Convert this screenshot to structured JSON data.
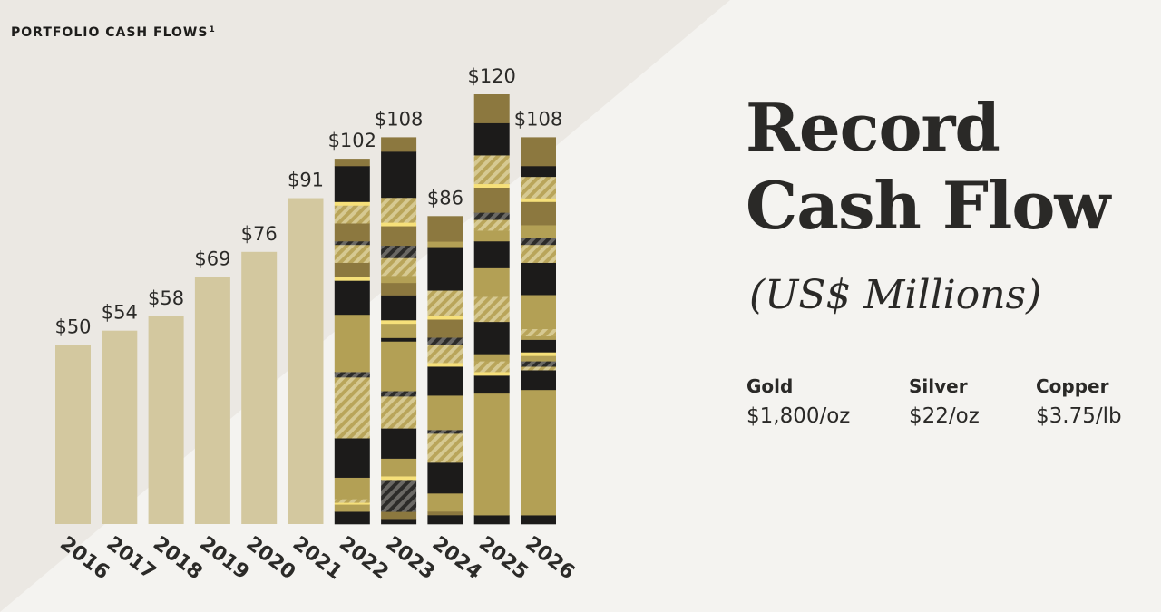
{
  "page": {
    "chart_title": "PORTFOLIO CASH FLOWS",
    "footnote_marker": "1",
    "headline_line1": "Record",
    "headline_line2": "Cash Flow",
    "units_note": "(US$ Millions)"
  },
  "prices": [
    {
      "metal": "Gold",
      "value": "$1,800/oz"
    },
    {
      "metal": "Silver",
      "value": "$22/oz"
    },
    {
      "metal": "Copper",
      "value": "$3.75/lb"
    }
  ],
  "colors": {
    "historical_bar": "#d3c89f",
    "black_segment": "#1c1b1a",
    "olive_segment": "#b3a055",
    "bronze_segment": "#8c783f",
    "yellow_stripe": "#f6e07a",
    "hatched_olive": "#c8b570",
    "hatched_dark": "#4a4946",
    "background": "#f4f3f0",
    "background_triangle": "#ebe8e3"
  },
  "chart_data": {
    "type": "bar",
    "title": "PORTFOLIO CASH FLOWS",
    "categories": [
      "2016",
      "2017",
      "2018",
      "2019",
      "2020",
      "2021",
      "2022",
      "2023",
      "2024",
      "2025",
      "2026"
    ],
    "values": [
      50,
      54,
      58,
      69,
      76,
      91,
      102,
      108,
      86,
      120,
      108
    ],
    "value_labels": [
      "$50",
      "$54",
      "$58",
      "$69",
      "$76",
      "$91",
      "$102",
      "$108",
      "$86",
      "$120",
      "$108"
    ],
    "ylim": [
      0,
      125
    ],
    "grid": false,
    "segment_composition": {
      "2022": [
        {
          "type": "black",
          "value": 3.5
        },
        {
          "type": "olive",
          "value": 2
        },
        {
          "type": "yellow",
          "value": 0.5
        },
        {
          "type": "hatch_o",
          "value": 1
        },
        {
          "type": "olive",
          "value": 6
        },
        {
          "type": "black",
          "value": 11
        },
        {
          "type": "hatch_o",
          "value": 17
        },
        {
          "type": "hatch_d",
          "value": 1.5
        },
        {
          "type": "olive",
          "value": 16
        },
        {
          "type": "black",
          "value": 9.5
        },
        {
          "type": "yellow",
          "value": 1
        },
        {
          "type": "bronze",
          "value": 4
        },
        {
          "type": "hatch_o",
          "value": 5
        },
        {
          "type": "hatch_d",
          "value": 1
        },
        {
          "type": "bronze",
          "value": 5
        },
        {
          "type": "hatch_o",
          "value": 5
        },
        {
          "type": "yellow",
          "value": 1
        },
        {
          "type": "black",
          "value": 10
        },
        {
          "type": "bronze",
          "value": 2
        }
      ],
      "2023": [
        {
          "type": "black",
          "value": 1.5
        },
        {
          "type": "bronze",
          "value": 2
        },
        {
          "type": "hatch_d",
          "value": 9
        },
        {
          "type": "yellow",
          "value": 1
        },
        {
          "type": "olive",
          "value": 5
        },
        {
          "type": "black",
          "value": 8.5
        },
        {
          "type": "hatch_o",
          "value": 9
        },
        {
          "type": "hatch_d",
          "value": 1.5
        },
        {
          "type": "olive",
          "value": 14
        },
        {
          "type": "black",
          "value": 1
        },
        {
          "type": "olive",
          "value": 4
        },
        {
          "type": "yellow",
          "value": 1
        },
        {
          "type": "black",
          "value": 7
        },
        {
          "type": "bronze",
          "value": 3.5
        },
        {
          "type": "olive",
          "value": 2
        },
        {
          "type": "hatch_o",
          "value": 5
        },
        {
          "type": "hatch_d",
          "value": 3.5
        },
        {
          "type": "bronze",
          "value": 5.5
        },
        {
          "type": "yellow",
          "value": 1
        },
        {
          "type": "hatch_o",
          "value": 7
        },
        {
          "type": "black",
          "value": 13
        },
        {
          "type": "bronze",
          "value": 4
        }
      ],
      "2024": [
        {
          "type": "black",
          "value": 2.5
        },
        {
          "type": "bronze",
          "value": 1
        },
        {
          "type": "olive",
          "value": 5
        },
        {
          "type": "black",
          "value": 8.5
        },
        {
          "type": "hatch_o",
          "value": 8
        },
        {
          "type": "hatch_d",
          "value": 1
        },
        {
          "type": "olive",
          "value": 9.5
        },
        {
          "type": "black",
          "value": 8
        },
        {
          "type": "yellow",
          "value": 1
        },
        {
          "type": "hatch_o",
          "value": 5
        },
        {
          "type": "hatch_d",
          "value": 2
        },
        {
          "type": "bronze",
          "value": 5
        },
        {
          "type": "yellow",
          "value": 1
        },
        {
          "type": "hatch_o",
          "value": 7
        },
        {
          "type": "black",
          "value": 12
        },
        {
          "type": "olive",
          "value": 1.5
        },
        {
          "type": "bronze",
          "value": 7
        }
      ],
      "2025": [
        {
          "type": "black",
          "value": 2.5
        },
        {
          "type": "olive",
          "value": 34
        },
        {
          "type": "black",
          "value": 5
        },
        {
          "type": "yellow",
          "value": 1
        },
        {
          "type": "hatch_o",
          "value": 3
        },
        {
          "type": "olive",
          "value": 2
        },
        {
          "type": "black",
          "value": 9
        },
        {
          "type": "hatch_o",
          "value": 7
        },
        {
          "type": "olive",
          "value": 8
        },
        {
          "type": "black",
          "value": 7.5
        },
        {
          "type": "olive",
          "value": 3
        },
        {
          "type": "hatch_o",
          "value": 3
        },
        {
          "type": "hatch_d",
          "value": 2
        },
        {
          "type": "bronze",
          "value": 7
        },
        {
          "type": "yellow",
          "value": 1
        },
        {
          "type": "hatch_o",
          "value": 8
        },
        {
          "type": "black",
          "value": 9
        },
        {
          "type": "bronze",
          "value": 8
        }
      ],
      "2026": [
        {
          "type": "black",
          "value": 2.5
        },
        {
          "type": "olive",
          "value": 35
        },
        {
          "type": "black",
          "value": 5.5
        },
        {
          "type": "hatch_o",
          "value": 1
        },
        {
          "type": "hatch_d",
          "value": 1.5
        },
        {
          "type": "olive",
          "value": 1.5
        },
        {
          "type": "yellow",
          "value": 1
        },
        {
          "type": "black",
          "value": 3.5
        },
        {
          "type": "olive",
          "value": 1
        },
        {
          "type": "hatch_o",
          "value": 2
        },
        {
          "type": "olive",
          "value": 9.5
        },
        {
          "type": "black",
          "value": 9
        },
        {
          "type": "hatch_o",
          "value": 5
        },
        {
          "type": "hatch_d",
          "value": 2
        },
        {
          "type": "olive",
          "value": 3.5
        },
        {
          "type": "bronze",
          "value": 6.5
        },
        {
          "type": "yellow",
          "value": 1
        },
        {
          "type": "hatch_o",
          "value": 6
        },
        {
          "type": "black",
          "value": 3
        },
        {
          "type": "bronze",
          "value": 8
        }
      ]
    }
  }
}
